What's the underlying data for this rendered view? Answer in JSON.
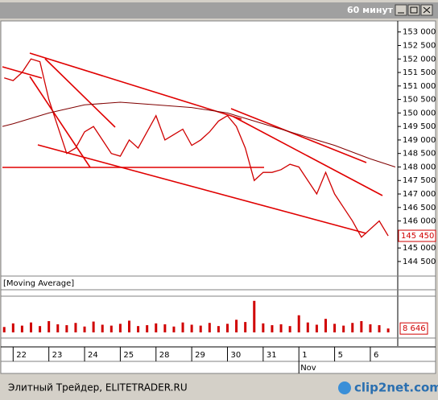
{
  "window": {
    "title": "60 минут"
  },
  "chart_data": [
    {
      "type": "line",
      "legend_label": "[Moving Average]",
      "xlim": [
        -0.3,
        10.7
      ],
      "xticks": [
        {
          "value": 0,
          "label": "22"
        },
        {
          "value": 1,
          "label": "23"
        },
        {
          "value": 2,
          "label": "24"
        },
        {
          "value": 3,
          "label": "25"
        },
        {
          "value": 4,
          "label": "28"
        },
        {
          "value": 5,
          "label": "29"
        },
        {
          "value": 6,
          "label": "30"
        },
        {
          "value": 7,
          "label": "31"
        },
        {
          "value": 8,
          "label": "1"
        },
        {
          "value": 9,
          "label": "5"
        },
        {
          "value": 10,
          "label": "6"
        }
      ],
      "x_sublabel": "Nov",
      "ylim": [
        144050,
        153200
      ],
      "yticks": [
        {
          "value": 144500,
          "label": "144 500"
        },
        {
          "value": 145000,
          "label": "145 000"
        },
        {
          "value": 145500,
          "label": "145 500"
        },
        {
          "value": 146000,
          "label": "146 000"
        },
        {
          "value": 146500,
          "label": "146 500"
        },
        {
          "value": 147000,
          "label": "147 000"
        },
        {
          "value": 147500,
          "label": "147 500"
        },
        {
          "value": 148000,
          "label": "148 000"
        },
        {
          "value": 148500,
          "label": "148 500"
        },
        {
          "value": 149000,
          "label": "149 000"
        },
        {
          "value": 149500,
          "label": "149 500"
        },
        {
          "value": 150000,
          "label": "150 000"
        },
        {
          "value": 150500,
          "label": "150 500"
        },
        {
          "value": 151000,
          "label": "151 000"
        },
        {
          "value": 151500,
          "label": "151 500"
        },
        {
          "value": 152000,
          "label": "152 000"
        },
        {
          "value": 152500,
          "label": "152 500"
        },
        {
          "value": 153000,
          "label": "153 000"
        }
      ],
      "last_value_label": "145 450",
      "series": [
        {
          "color": "#d00000",
          "x": [
            -0.25,
            0,
            0.25,
            0.5,
            0.75,
            1,
            1.25,
            1.5,
            1.75,
            2,
            2.25,
            2.5,
            2.75,
            3,
            3.25,
            3.5,
            3.75,
            4,
            4.25,
            4.5,
            4.75,
            5,
            5.25,
            5.5,
            5.75,
            6,
            6.25,
            6.5,
            6.75,
            7,
            7.25,
            7.5,
            7.75,
            8,
            8.25,
            8.5,
            8.75,
            9,
            9.25,
            9.5,
            9.75,
            10,
            10.25,
            10.5
          ],
          "values": [
            151300,
            151200,
            151500,
            152000,
            151900,
            150500,
            149500,
            148500,
            148700,
            149300,
            149500,
            149000,
            148500,
            148400,
            149000,
            148700,
            149300,
            149900,
            149000,
            149200,
            149400,
            148800,
            149000,
            149300,
            149700,
            149900,
            149500,
            148700,
            147500,
            147800,
            147800,
            147900,
            148100,
            148000,
            147500,
            147000,
            147800,
            147000,
            146500,
            146000,
            145400,
            145700,
            146000,
            145450
          ]
        },
        {
          "color": "#800000",
          "x": [
            -0.3,
            0,
            1,
            2,
            3,
            4,
            5,
            6,
            7,
            8,
            9,
            10,
            10.7
          ],
          "values": [
            149500,
            149600,
            150000,
            150300,
            150400,
            150300,
            150200,
            150000,
            149600,
            149200,
            148800,
            148300,
            148000
          ]
        }
      ]
    },
    {
      "type": "bar",
      "color": "#d00000",
      "xlim": [
        -0.3,
        10.7
      ],
      "ylim": [
        0,
        75000
      ],
      "last_value_label": "8 646",
      "x": [
        -0.25,
        0,
        0.25,
        0.5,
        0.75,
        1,
        1.25,
        1.5,
        1.75,
        2,
        2.25,
        2.5,
        2.75,
        3,
        3.25,
        3.5,
        3.75,
        4,
        4.25,
        4.5,
        4.75,
        5,
        5.25,
        5.5,
        5.75,
        6,
        6.25,
        6.5,
        6.75,
        7,
        7.25,
        7.5,
        7.75,
        8,
        8.25,
        8.5,
        8.75,
        9,
        9.25,
        9.5,
        9.75,
        10,
        10.25,
        10.5
      ],
      "values": [
        12000,
        20000,
        15000,
        22000,
        14000,
        25000,
        18000,
        16000,
        21000,
        13000,
        24000,
        17000,
        15000,
        19000,
        26000,
        14000,
        16000,
        20000,
        18000,
        13000,
        22000,
        17000,
        15000,
        21000,
        14000,
        19000,
        28000,
        23000,
        70000,
        20000,
        16000,
        18000,
        14000,
        38000,
        22000,
        17000,
        30000,
        19000,
        15000,
        21000,
        25000,
        18000,
        16000,
        8646
      ]
    }
  ],
  "footer": {
    "source": "Элитный Трейдер, ELITETRADER.RU",
    "logo": "clip2net.com"
  }
}
